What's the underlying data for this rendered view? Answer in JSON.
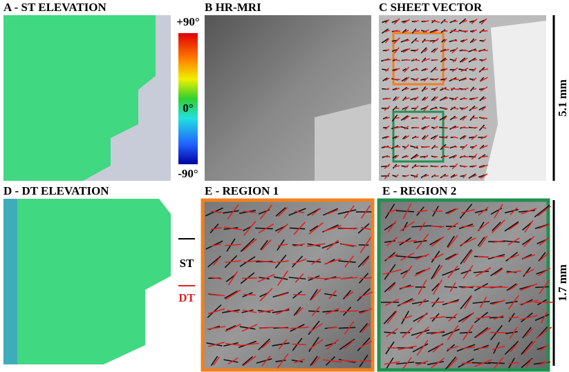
{
  "panels": [
    {
      "title": "A - ST ELEVATION"
    },
    {
      "title": "B HR-MRI"
    },
    {
      "title": "C SHEET VECTOR"
    },
    {
      "title": "D - DT ELEVATION"
    },
    {
      "title": "E - REGION 1"
    },
    {
      "title": "E - REGION 2"
    }
  ],
  "colorbar": {
    "max": "+90°",
    "mid": "0°",
    "min": "-90°"
  },
  "scale_bars": {
    "top": "5.1 mm",
    "bottom": "1.7 mm"
  },
  "legend": {
    "st": "ST",
    "dt": "DT"
  }
}
